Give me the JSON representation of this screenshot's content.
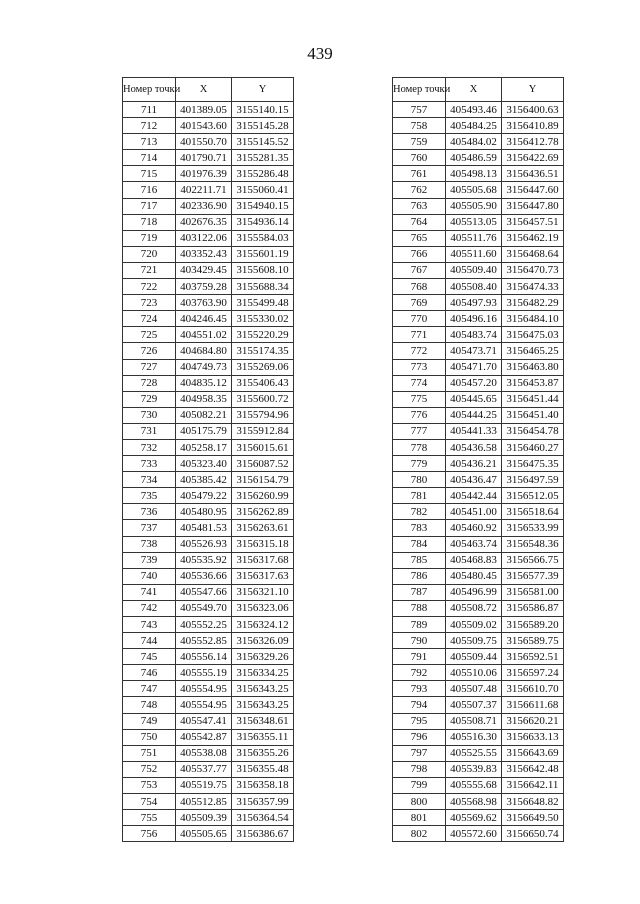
{
  "page_number": "439",
  "headers": {
    "number": "Номер точки",
    "x": "X",
    "y": "Y"
  },
  "left_table": [
    [
      "711",
      "401389.05",
      "3155140.15"
    ],
    [
      "712",
      "401543.60",
      "3155145.28"
    ],
    [
      "713",
      "401550.70",
      "3155145.52"
    ],
    [
      "714",
      "401790.71",
      "3155281.35"
    ],
    [
      "715",
      "401976.39",
      "3155286.48"
    ],
    [
      "716",
      "402211.71",
      "3155060.41"
    ],
    [
      "717",
      "402336.90",
      "3154940.15"
    ],
    [
      "718",
      "402676.35",
      "3154936.14"
    ],
    [
      "719",
      "403122.06",
      "3155584.03"
    ],
    [
      "720",
      "403352.43",
      "3155601.19"
    ],
    [
      "721",
      "403429.45",
      "3155608.10"
    ],
    [
      "722",
      "403759.28",
      "3155688.34"
    ],
    [
      "723",
      "403763.90",
      "3155499.48"
    ],
    [
      "724",
      "404246.45",
      "3155330.02"
    ],
    [
      "725",
      "404551.02",
      "3155220.29"
    ],
    [
      "726",
      "404684.80",
      "3155174.35"
    ],
    [
      "727",
      "404749.73",
      "3155269.06"
    ],
    [
      "728",
      "404835.12",
      "3155406.43"
    ],
    [
      "729",
      "404958.35",
      "3155600.72"
    ],
    [
      "730",
      "405082.21",
      "3155794.96"
    ],
    [
      "731",
      "405175.79",
      "3155912.84"
    ],
    [
      "732",
      "405258.17",
      "3156015.61"
    ],
    [
      "733",
      "405323.40",
      "3156087.52"
    ],
    [
      "734",
      "405385.42",
      "3156154.79"
    ],
    [
      "735",
      "405479.22",
      "3156260.99"
    ],
    [
      "736",
      "405480.95",
      "3156262.89"
    ],
    [
      "737",
      "405481.53",
      "3156263.61"
    ],
    [
      "738",
      "405526.93",
      "3156315.18"
    ],
    [
      "739",
      "405535.92",
      "3156317.68"
    ],
    [
      "740",
      "405536.66",
      "3156317.63"
    ],
    [
      "741",
      "405547.66",
      "3156321.10"
    ],
    [
      "742",
      "405549.70",
      "3156323.06"
    ],
    [
      "743",
      "405552.25",
      "3156324.12"
    ],
    [
      "744",
      "405552.85",
      "3156326.09"
    ],
    [
      "745",
      "405556.14",
      "3156329.26"
    ],
    [
      "746",
      "405555.19",
      "3156334.25"
    ],
    [
      "747",
      "405554.95",
      "3156343.25"
    ],
    [
      "748",
      "405554.95",
      "3156343.25"
    ],
    [
      "749",
      "405547.41",
      "3156348.61"
    ],
    [
      "750",
      "405542.87",
      "3156355.11"
    ],
    [
      "751",
      "405538.08",
      "3156355.26"
    ],
    [
      "752",
      "405537.77",
      "3156355.48"
    ],
    [
      "753",
      "405519.75",
      "3156358.18"
    ],
    [
      "754",
      "405512.85",
      "3156357.99"
    ],
    [
      "755",
      "405509.39",
      "3156364.54"
    ],
    [
      "756",
      "405505.65",
      "3156386.67"
    ]
  ],
  "right_table": [
    [
      "757",
      "405493.46",
      "3156400.63"
    ],
    [
      "758",
      "405484.25",
      "3156410.89"
    ],
    [
      "759",
      "405484.02",
      "3156412.78"
    ],
    [
      "760",
      "405486.59",
      "3156422.69"
    ],
    [
      "761",
      "405498.13",
      "3156436.51"
    ],
    [
      "762",
      "405505.68",
      "3156447.60"
    ],
    [
      "763",
      "405505.90",
      "3156447.80"
    ],
    [
      "764",
      "405513.05",
      "3156457.51"
    ],
    [
      "765",
      "405511.76",
      "3156462.19"
    ],
    [
      "766",
      "405511.60",
      "3156468.64"
    ],
    [
      "767",
      "405509.40",
      "3156470.73"
    ],
    [
      "768",
      "405508.40",
      "3156474.33"
    ],
    [
      "769",
      "405497.93",
      "3156482.29"
    ],
    [
      "770",
      "405496.16",
      "3156484.10"
    ],
    [
      "771",
      "405483.74",
      "3156475.03"
    ],
    [
      "772",
      "405473.71",
      "3156465.25"
    ],
    [
      "773",
      "405471.70",
      "3156463.80"
    ],
    [
      "774",
      "405457.20",
      "3156453.87"
    ],
    [
      "775",
      "405445.65",
      "3156451.44"
    ],
    [
      "776",
      "405444.25",
      "3156451.40"
    ],
    [
      "777",
      "405441.33",
      "3156454.78"
    ],
    [
      "778",
      "405436.58",
      "3156460.27"
    ],
    [
      "779",
      "405436.21",
      "3156475.35"
    ],
    [
      "780",
      "405436.47",
      "3156497.59"
    ],
    [
      "781",
      "405442.44",
      "3156512.05"
    ],
    [
      "782",
      "405451.00",
      "3156518.64"
    ],
    [
      "783",
      "405460.92",
      "3156533.99"
    ],
    [
      "784",
      "405463.74",
      "3156548.36"
    ],
    [
      "785",
      "405468.83",
      "3156566.75"
    ],
    [
      "786",
      "405480.45",
      "3156577.39"
    ],
    [
      "787",
      "405496.99",
      "3156581.00"
    ],
    [
      "788",
      "405508.72",
      "3156586.87"
    ],
    [
      "789",
      "405509.02",
      "3156589.20"
    ],
    [
      "790",
      "405509.75",
      "3156589.75"
    ],
    [
      "791",
      "405509.44",
      "3156592.51"
    ],
    [
      "792",
      "405510.06",
      "3156597.24"
    ],
    [
      "793",
      "405507.48",
      "3156610.70"
    ],
    [
      "794",
      "405507.37",
      "3156611.68"
    ],
    [
      "795",
      "405508.71",
      "3156620.21"
    ],
    [
      "796",
      "405516.30",
      "3156633.13"
    ],
    [
      "797",
      "405525.55",
      "3156643.69"
    ],
    [
      "798",
      "405539.83",
      "3156642.48"
    ],
    [
      "799",
      "405555.68",
      "3156642.11"
    ],
    [
      "800",
      "405568.98",
      "3156648.82"
    ],
    [
      "801",
      "405569.62",
      "3156649.50"
    ],
    [
      "802",
      "405572.60",
      "3156650.74"
    ]
  ]
}
